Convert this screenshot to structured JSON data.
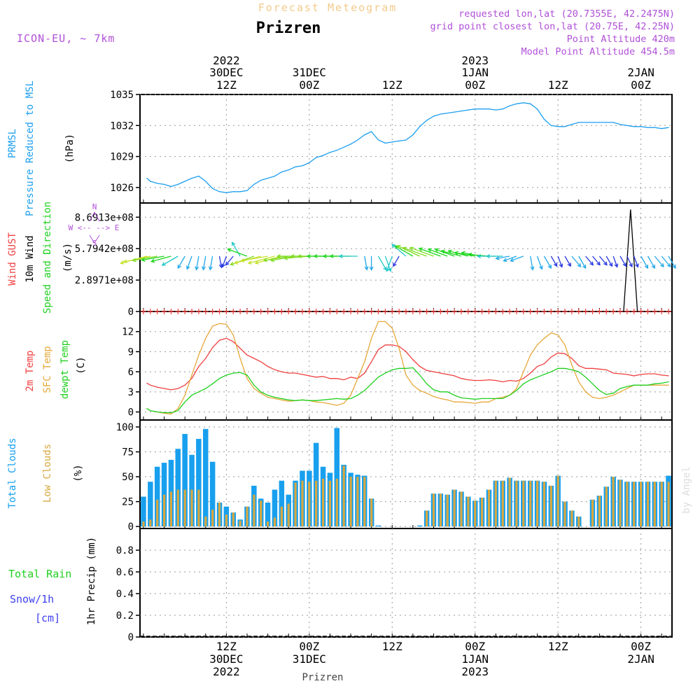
{
  "header": {
    "super_title": "Forecast Meteogram",
    "location": "Prizren",
    "model": "ICON-EU, ~ 7km",
    "requested": "requested lon,lat (20.7355E, 42.2475N)",
    "grid_point": "grid point closest lon,lat (20.75E, 42.25N)",
    "point_altitude": "Point Altitude 420m",
    "model_altitude": "Model Point Altitude 454.5m",
    "footer_location": "Prizren",
    "watermark": "by Angel"
  },
  "colors": {
    "pressure": "#1e9ff0",
    "temp2m": "#f04040",
    "sfc_temp": "#e6a83a",
    "dewpt": "#20d020",
    "total_clouds": "#18a0ee",
    "low_clouds": "#d8a840",
    "gust": "#f04040",
    "meta": "#b050d8",
    "snow": "#4040f0",
    "rain": "#20d020"
  },
  "time_axis": {
    "ticks": [
      {
        "h": 12,
        "time": "12Z",
        "date": "30DEC",
        "year": "2022"
      },
      {
        "h": 24,
        "time": "00Z",
        "date": "31DEC",
        "year": ""
      },
      {
        "h": 36,
        "time": "12Z",
        "date": "",
        "year": ""
      },
      {
        "h": 48,
        "time": "00Z",
        "date": "1JAN",
        "year": "2023"
      },
      {
        "h": 60,
        "time": "12Z",
        "date": "",
        "year": ""
      },
      {
        "h": 72,
        "time": "00Z",
        "date": "2JAN",
        "year": ""
      }
    ],
    "top_ticks": [
      {
        "h": 12,
        "time": "12Z",
        "date": "30DEC",
        "year": "2022"
      },
      {
        "h": 24,
        "time": "00Z",
        "date": "31DEC",
        "year": ""
      },
      {
        "h": 36,
        "time": "12Z",
        "date": "",
        "year": ""
      },
      {
        "h": 48,
        "time": "00Z",
        "date": "1JAN",
        "year": "2023"
      },
      {
        "h": 60,
        "time": "12Z",
        "date": "",
        "year": ""
      },
      {
        "h": 72,
        "time": "00Z",
        "date": "2JAN",
        "year": ""
      }
    ]
  },
  "chart_data": [
    {
      "type": "line",
      "panel": "pressure",
      "side_labels": [
        "PRMSL",
        "Pressure Reduced to MSL"
      ],
      "ylabel": "(hPa)",
      "ylim": [
        1024.5,
        1035
      ],
      "yticks": [
        1026,
        1029,
        1032,
        1035
      ],
      "x_hours": [
        0.5,
        1,
        2,
        3,
        4,
        5,
        6,
        7,
        8,
        9,
        10,
        11,
        12,
        13,
        14,
        15,
        16,
        17,
        18,
        19,
        20,
        21,
        22,
        23,
        24,
        25,
        26,
        27,
        28,
        29,
        30,
        31,
        32,
        33,
        34,
        35,
        36,
        37,
        38,
        39,
        40,
        41,
        42,
        43,
        44,
        45,
        46,
        47,
        48,
        49,
        50,
        51,
        52,
        53,
        54,
        55,
        56,
        57,
        58,
        59,
        60,
        61,
        62,
        63,
        64,
        65,
        66,
        67,
        68,
        69,
        70,
        71,
        72,
        73,
        74,
        75,
        76
      ],
      "series": [
        {
          "values": [
            1026.9,
            1026.6,
            1026.4,
            1026.3,
            1026.1,
            1026.3,
            1026.6,
            1026.9,
            1027.1,
            1026.6,
            1025.9,
            1025.6,
            1025.5,
            1025.6,
            1025.6,
            1025.7,
            1026.3,
            1026.7,
            1026.9,
            1027.1,
            1027.5,
            1027.7,
            1028.0,
            1028.1,
            1028.4,
            1028.9,
            1029.1,
            1029.4,
            1029.6,
            1029.9,
            1030.2,
            1030.6,
            1031.1,
            1031.4,
            1030.6,
            1030.3,
            1030.4,
            1030.5,
            1030.6,
            1031.1,
            1031.9,
            1032.5,
            1032.9,
            1033.1,
            1033.2,
            1033.3,
            1033.4,
            1033.5,
            1033.6,
            1033.6,
            1033.6,
            1033.5,
            1033.6,
            1033.9,
            1034.1,
            1034.2,
            1034.1,
            1033.6,
            1032.6,
            1032.0,
            1031.9,
            1031.9,
            1032.1,
            1032.3,
            1032.3,
            1032.3,
            1032.3,
            1032.3,
            1032.3,
            1032.1,
            1032.0,
            1031.9,
            1031.9,
            1031.8,
            1031.8,
            1031.7,
            1031.8
          ]
        }
      ]
    },
    {
      "type": "line",
      "panel": "wind",
      "side_labels": [
        "Wind GUST",
        "10m Wind",
        "Speed and Direction"
      ],
      "ylabel": "(m/s)",
      "compass": "W <-- --> E",
      "compass_n": "N",
      "compass_s": "S",
      "ylim": [
        0,
        1000000000
      ],
      "yticks": [
        0,
        289710000,
        579420000,
        869130000
      ],
      "ytick_labels": [
        "0",
        "2.8971e+08",
        "5.7942e+08",
        "8.6913e+08"
      ],
      "series": [
        {
          "name": "Wind GUST",
          "x_hours": [
            69.5,
            70.5,
            71.5
          ],
          "values": [
            0,
            940000000,
            0
          ]
        }
      ],
      "wind_arrows": {
        "x_hours": [
          0.5,
          1,
          2,
          3,
          4,
          5,
          6,
          7,
          8,
          9,
          10,
          11,
          12,
          13,
          14,
          15,
          16,
          17,
          18,
          19,
          20,
          21,
          22,
          23,
          24,
          25,
          26,
          27,
          28,
          29,
          30,
          31,
          32,
          33,
          34,
          35,
          36,
          37,
          38,
          39,
          40,
          41,
          42,
          43,
          44,
          45,
          46,
          47,
          48,
          49,
          50,
          51,
          52,
          53,
          54,
          55,
          56,
          57,
          58,
          59,
          60,
          61,
          62,
          63,
          64,
          65,
          66,
          67,
          68,
          69,
          70,
          71,
          72,
          73,
          74,
          75,
          76
        ],
        "dir_deg": [
          75,
          78,
          80,
          80,
          75,
          60,
          30,
          20,
          10,
          10,
          10,
          350,
          20,
          40,
          150,
          110,
          70,
          75,
          80,
          75,
          75,
          80,
          80,
          90,
          85,
          90,
          90,
          90,
          90,
          90,
          90,
          90,
          350,
          0,
          330,
          340,
          20,
          30,
          130,
          120,
          115,
          110,
          110,
          110,
          110,
          110,
          105,
          105,
          100,
          100,
          95,
          90,
          90,
          80,
          70,
          70,
          350,
          340,
          330,
          330,
          340,
          330,
          320,
          330,
          320,
          320,
          320,
          330,
          340,
          330,
          335,
          340,
          330,
          330,
          320,
          320,
          330
        ],
        "speed": [
          9,
          9,
          8,
          7,
          6,
          5,
          3,
          3,
          3,
          3,
          3,
          2,
          2,
          2,
          4,
          6,
          8,
          9,
          9,
          9,
          9,
          8,
          8,
          8,
          8,
          8,
          8,
          7,
          7,
          6,
          6,
          5,
          3,
          3,
          4,
          4,
          4,
          2,
          5,
          6,
          8,
          8,
          8,
          7,
          6,
          6,
          6,
          6,
          6,
          6,
          6,
          5,
          4,
          3,
          3,
          3,
          3,
          3,
          3,
          2,
          2,
          2,
          3,
          3,
          2,
          2,
          2,
          2,
          2,
          2,
          2,
          2,
          3,
          3,
          3,
          3,
          3
        ]
      }
    },
    {
      "type": "line",
      "panel": "temperature",
      "side_labels": [
        "2m Temp",
        "SFC Temp",
        "dewpt Temp"
      ],
      "ylabel": "(C)",
      "ylim": [
        -1.2,
        15
      ],
      "yticks": [
        0,
        3,
        6,
        9,
        12
      ],
      "x_hours": [
        0.5,
        1,
        2,
        3,
        4,
        5,
        6,
        7,
        8,
        9,
        10,
        11,
        12,
        13,
        14,
        15,
        16,
        17,
        18,
        19,
        20,
        21,
        22,
        23,
        24,
        25,
        26,
        27,
        28,
        29,
        30,
        31,
        32,
        33,
        34,
        35,
        36,
        37,
        38,
        39,
        40,
        41,
        42,
        43,
        44,
        45,
        46,
        47,
        48,
        49,
        50,
        51,
        52,
        53,
        54,
        55,
        56,
        57,
        58,
        59,
        60,
        61,
        62,
        63,
        64,
        65,
        66,
        67,
        68,
        69,
        70,
        71,
        72,
        73,
        74,
        75,
        76
      ],
      "series": [
        {
          "name": "2m Temp",
          "values": [
            4.3,
            4.0,
            3.7,
            3.5,
            3.3,
            3.5,
            4.0,
            5.0,
            6.8,
            8.0,
            9.6,
            10.7,
            11.0,
            10.5,
            9.5,
            8.5,
            8.0,
            7.5,
            6.8,
            6.3,
            6.0,
            5.8,
            5.8,
            5.6,
            5.4,
            5.2,
            5.3,
            5.0,
            5.0,
            4.8,
            5.2,
            5.0,
            5.8,
            7.5,
            9.3,
            10.0,
            10.0,
            9.8,
            9.0,
            7.8,
            6.8,
            6.2,
            6.0,
            5.8,
            5.6,
            5.4,
            5.0,
            4.8,
            4.7,
            4.7,
            4.8,
            4.7,
            4.5,
            4.7,
            4.6,
            5.0,
            5.8,
            6.8,
            7.2,
            8.2,
            8.8,
            8.7,
            8.0,
            6.9,
            6.5,
            6.5,
            6.4,
            6.3,
            5.8,
            5.7,
            5.6,
            5.4,
            5.6,
            5.7,
            5.7,
            5.5,
            5.4
          ]
        },
        {
          "name": "SFC Temp",
          "values": [
            0.5,
            0.2,
            0.0,
            -0.2,
            -0.3,
            0.5,
            2.5,
            5.5,
            8.5,
            11.0,
            12.8,
            13.2,
            13.1,
            11.5,
            8.0,
            5.0,
            3.5,
            2.8,
            2.2,
            2.0,
            1.8,
            1.6,
            1.7,
            1.8,
            1.7,
            1.5,
            1.4,
            1.2,
            1.0,
            1.3,
            2.5,
            5.0,
            7.5,
            11.0,
            13.5,
            13.5,
            12.5,
            9.5,
            5.5,
            4.0,
            3.2,
            2.8,
            2.3,
            2.0,
            1.8,
            1.5,
            1.5,
            1.4,
            1.3,
            1.5,
            1.5,
            2.0,
            2.2,
            2.5,
            3.5,
            6.0,
            8.5,
            10.0,
            11.0,
            11.8,
            11.5,
            10.0,
            7.0,
            4.5,
            3.0,
            2.2,
            2.0,
            2.2,
            2.5,
            3.0,
            3.5,
            4.0,
            4.0,
            4.0,
            4.0,
            4.0,
            4.0
          ]
        },
        {
          "name": "dewpt Temp",
          "values": [
            0.5,
            0.2,
            0.0,
            -0.1,
            -0.1,
            0.2,
            1.5,
            2.5,
            3.0,
            3.5,
            4.2,
            5.0,
            5.5,
            5.8,
            5.9,
            5.5,
            4.0,
            3.0,
            2.5,
            2.2,
            2.0,
            1.8,
            1.7,
            1.8,
            1.7,
            1.7,
            1.8,
            1.9,
            2.0,
            1.9,
            2.0,
            2.5,
            3.2,
            4.2,
            5.2,
            5.8,
            6.3,
            6.5,
            6.5,
            6.6,
            5.5,
            4.2,
            3.3,
            3.0,
            3.0,
            2.5,
            2.1,
            2.0,
            1.9,
            2.0,
            2.0,
            2.0,
            2.0,
            2.5,
            3.2,
            4.2,
            4.8,
            5.2,
            5.6,
            6.0,
            6.5,
            6.5,
            6.3,
            6.0,
            5.2,
            4.2,
            3.2,
            2.6,
            2.8,
            3.5,
            3.8,
            4.0,
            4.0,
            4.0,
            4.2,
            4.3,
            4.5
          ]
        }
      ]
    },
    {
      "type": "bar",
      "panel": "clouds",
      "side_labels": [
        "Total Clouds",
        "Low Clouds"
      ],
      "ylabel": "(%)",
      "ylim": [
        -2,
        107
      ],
      "yticks": [
        0,
        25,
        50,
        75,
        100
      ],
      "x_hours": [
        0,
        1,
        2,
        3,
        4,
        5,
        6,
        7,
        8,
        9,
        10,
        11,
        12,
        13,
        14,
        15,
        16,
        17,
        18,
        19,
        20,
        21,
        22,
        23,
        24,
        25,
        26,
        27,
        28,
        29,
        30,
        31,
        32,
        33,
        34,
        35,
        36,
        37,
        38,
        39,
        40,
        41,
        42,
        43,
        44,
        45,
        46,
        47,
        48,
        49,
        50,
        51,
        52,
        53,
        54,
        55,
        56,
        57,
        58,
        59,
        60,
        61,
        62,
        63,
        64,
        65,
        66,
        67,
        68,
        69,
        70,
        71,
        72,
        73,
        74,
        75,
        76
      ],
      "series": [
        {
          "name": "Total Clouds",
          "values": [
            30,
            45,
            60,
            64,
            67,
            78,
            93,
            72,
            88,
            98,
            65,
            24,
            20,
            14,
            7,
            20,
            41,
            28,
            24,
            37,
            46,
            32,
            46,
            56,
            56,
            84,
            60,
            54,
            99,
            62,
            54,
            52,
            51,
            28,
            1,
            0,
            0,
            0,
            0,
            0,
            1,
            16,
            33,
            33,
            32,
            37,
            35,
            30,
            26,
            29,
            37,
            46,
            46,
            49,
            46,
            46,
            46,
            46,
            45,
            41,
            51,
            25,
            16,
            10,
            0,
            27,
            31,
            40,
            50,
            47,
            45,
            45,
            45,
            45,
            45,
            45,
            51
          ]
        },
        {
          "name": "Low Clouds",
          "values": [
            5,
            7,
            27,
            32,
            35,
            37,
            37,
            37,
            37,
            10,
            17,
            24,
            12,
            14,
            6,
            20,
            32,
            26,
            5,
            9,
            20,
            23,
            44,
            46,
            45,
            46,
            48,
            46,
            48,
            61,
            50,
            50,
            50,
            28,
            0,
            0,
            0,
            0,
            0,
            0,
            0,
            16,
            33,
            33,
            32,
            37,
            35,
            30,
            26,
            29,
            37,
            46,
            46,
            49,
            46,
            46,
            46,
            46,
            45,
            41,
            51,
            25,
            16,
            10,
            0,
            27,
            31,
            40,
            50,
            47,
            45,
            45,
            45,
            45,
            45,
            45,
            45
          ]
        }
      ]
    },
    {
      "type": "bar",
      "panel": "precip",
      "side_labels": [
        "Total  Rain",
        "Snow/1h",
        "[cm]"
      ],
      "ylabel": "1hr Precip (mm)",
      "ylim": [
        0,
        1
      ],
      "yticks": [
        0,
        0.2,
        0.4,
        0.6,
        0.8
      ],
      "ytick_labels": [
        "0",
        "0.2",
        "0.4",
        "0.6",
        "0.8"
      ],
      "series": [
        {
          "name": "Total Rain",
          "values": [
            0,
            0,
            0,
            0,
            0,
            0,
            0,
            0,
            0,
            0,
            0,
            0,
            0,
            0,
            0,
            0,
            0,
            0,
            0,
            0,
            0,
            0,
            0,
            0,
            0,
            0,
            0,
            0,
            0,
            0,
            0,
            0,
            0,
            0,
            0,
            0,
            0,
            0,
            0,
            0,
            0,
            0,
            0,
            0,
            0,
            0,
            0,
            0,
            0,
            0,
            0,
            0,
            0,
            0,
            0,
            0,
            0,
            0,
            0,
            0,
            0,
            0,
            0,
            0,
            0,
            0,
            0,
            0,
            0,
            0,
            0,
            0,
            0,
            0,
            0,
            0,
            0
          ]
        }
      ]
    }
  ]
}
